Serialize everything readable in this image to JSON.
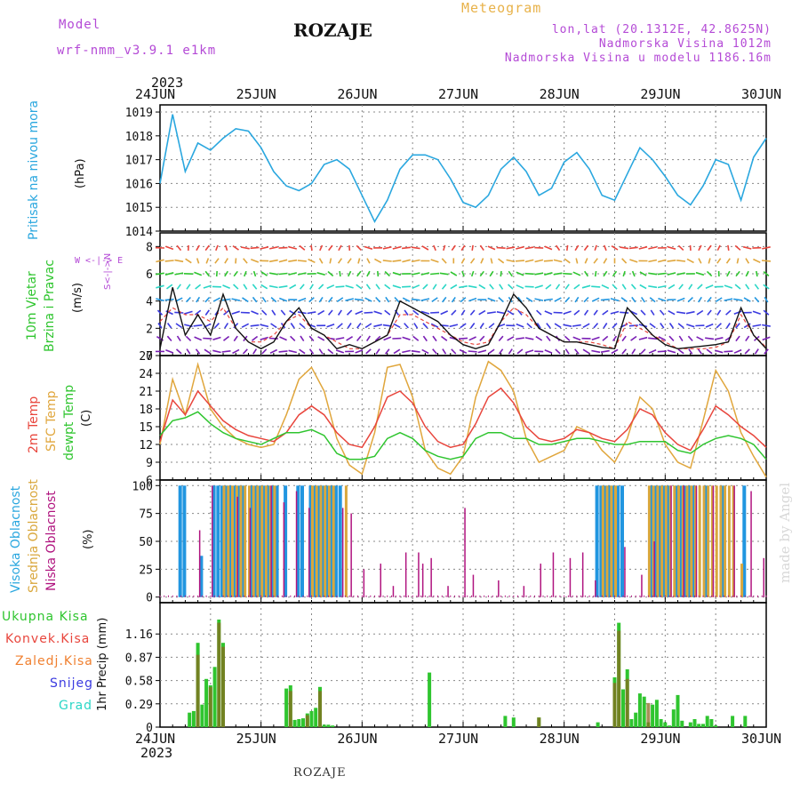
{
  "header": {
    "model_label": "Model",
    "model_name": "wrf-nmm_v3.9.1 e1km",
    "station": "ROZAJE",
    "meteogram": "Meteogram",
    "lonlat": "lon,lat (20.1312E, 42.8625N)",
    "elevation": "Nadmorska Visina 1012m",
    "model_elevation": "Nadmorska Visina u modelu 1186.16m"
  },
  "footer": {
    "station": "ROZAJE",
    "credit": "made by Angel"
  },
  "time_axis": {
    "year": "2023",
    "dates": [
      "24JUN",
      "25JUN",
      "26JUN",
      "27JUN",
      "28JUN",
      "29JUN",
      "30JUN"
    ]
  },
  "panel_labels": {
    "pressure": [
      "Pritisak na nivou mora"
    ],
    "pressure_unit": "(hPa)",
    "wind": [
      "10m Vjetar",
      "Brzina i Pravac"
    ],
    "wind_unit": "(m/s)",
    "wind_compass": "W <-|-> E",
    "wind_compass_ns": "S<-|->N",
    "temp": [
      "2m Temp",
      "SFC Temp",
      "dewpt Temp"
    ],
    "temp_unit": "(C)",
    "cloud": [
      "Visoka Oblacnost",
      "Srednja Oblacnost",
      "Niska Oblacnost"
    ],
    "cloud_unit": "(%)",
    "precip_unit": "1hr Precip (mm)",
    "precip_legend": [
      "Ukupna Kisa",
      "Konvek.Kisa",
      "Zaledj.Kisa",
      "Snijeg",
      "Grad"
    ]
  },
  "colors": {
    "pressure": "#2aa7df",
    "temp2m": "#e8453c",
    "sfc": "#e0a63c",
    "dew": "#2fc52f",
    "high_cloud": "#2196e0",
    "mid_cloud": "#d9a73c",
    "low_cloud": "#b0147f",
    "total_rain": "#2fc52f",
    "conv_rain": "#e8453c",
    "frz_rain": "#f08030",
    "snow": "#3a3ae0",
    "hail": "#2ad6c6",
    "model_text": "#b44ad6",
    "meteogram_text": "#e8b24a"
  },
  "chart_data": [
    {
      "type": "line",
      "title": "",
      "ylabel": "Pritisak na nivou mora (hPa)",
      "ylim": [
        1014,
        1019.3
      ],
      "yticks": [
        "1014",
        "1015",
        "1016",
        "1017",
        "1018",
        "1019"
      ],
      "x_hours": [
        0,
        3,
        6,
        9,
        12,
        15,
        18,
        21,
        24,
        27,
        30,
        33,
        36,
        39,
        42,
        45,
        48,
        51,
        54,
        57,
        60,
        63,
        66,
        69,
        72,
        75,
        78,
        81,
        84,
        87,
        90,
        93,
        96,
        99,
        102,
        105,
        108,
        111,
        114,
        117,
        120,
        123,
        126,
        129,
        132,
        135,
        138,
        141,
        144
      ],
      "series": [
        {
          "values": [
            1016.0,
            1018.9,
            1016.5,
            1017.7,
            1017.4,
            1017.9,
            1018.3,
            1018.2,
            1017.5,
            1016.5,
            1015.9,
            1015.7,
            1016.0,
            1016.8,
            1017.0,
            1016.6,
            1015.5,
            1014.4,
            1015.3,
            1016.6,
            1017.2,
            1017.2,
            1017.0,
            1016.2,
            1015.2,
            1015.0,
            1015.5,
            1016.6,
            1017.1,
            1016.5,
            1015.5,
            1015.8,
            1016.9,
            1017.3,
            1016.6,
            1015.5,
            1015.3,
            1016.4,
            1017.5,
            1017.0,
            1016.3,
            1015.5,
            1015.1,
            1015.9,
            1017.0,
            1016.8,
            1015.3,
            1017.1,
            1017.9
          ]
        }
      ],
      "grid": true
    },
    {
      "type": "line",
      "title": "",
      "ylabel": "10m Vjetar Brzina i Pravac (m/s)",
      "ylim": [
        0,
        9
      ],
      "yticks": [
        "0",
        "2",
        "4",
        "6",
        "8"
      ],
      "note": "wind barbs drawn at 9 levels; line = 10m wind speed, dashed = gust estimate",
      "x_hours": [
        0,
        3,
        6,
        9,
        12,
        15,
        18,
        21,
        24,
        27,
        30,
        33,
        36,
        39,
        42,
        45,
        48,
        51,
        54,
        57,
        60,
        63,
        66,
        69,
        72,
        75,
        78,
        81,
        84,
        87,
        90,
        93,
        96,
        99,
        102,
        105,
        108,
        111,
        114,
        117,
        120,
        123,
        126,
        129,
        132,
        135,
        138,
        141,
        144
      ],
      "series": [
        {
          "values": [
            0.5,
            5.0,
            1.5,
            3.0,
            1.5,
            4.5,
            2.0,
            1.0,
            0.5,
            1.0,
            2.5,
            3.5,
            2.0,
            1.5,
            0.5,
            0.8,
            0.5,
            1.0,
            1.5,
            4.0,
            3.5,
            3.0,
            2.5,
            1.5,
            0.8,
            0.5,
            0.8,
            2.5,
            4.5,
            3.5,
            2.0,
            1.5,
            1.0,
            1.0,
            0.8,
            0.6,
            0.5,
            3.5,
            2.5,
            1.5,
            0.8,
            0.5,
            0.6,
            0.7,
            0.8,
            1.0,
            3.5,
            1.5,
            0.5
          ]
        },
        {
          "values": [
            2.5,
            3.5,
            3.0,
            3.0,
            2.5,
            3.5,
            2.0,
            1.0,
            1.0,
            1.5,
            2.5,
            3.0,
            2.0,
            1.5,
            1.0,
            0.5,
            0.5,
            1.0,
            1.5,
            3.0,
            3.0,
            2.5,
            2.0,
            1.5,
            1.0,
            0.8,
            1.0,
            2.5,
            3.5,
            3.0,
            2.0,
            1.5,
            1.0,
            1.0,
            1.0,
            0.8,
            0.5,
            2.5,
            2.0,
            1.5,
            1.0,
            0.5,
            0.5,
            0.5,
            0.6,
            1.0,
            3.0,
            1.5,
            0.6
          ]
        }
      ],
      "grid": true
    },
    {
      "type": "line",
      "title": "",
      "ylabel": "2m Temp / SFC Temp / dewpt Temp (C)",
      "ylim": [
        6,
        27
      ],
      "yticks": [
        "6",
        "9",
        "12",
        "15",
        "18",
        "21",
        "24",
        "27"
      ],
      "x_hours": [
        0,
        3,
        6,
        9,
        12,
        15,
        18,
        21,
        24,
        27,
        30,
        33,
        36,
        39,
        42,
        45,
        48,
        51,
        54,
        57,
        60,
        63,
        66,
        69,
        72,
        75,
        78,
        81,
        84,
        87,
        90,
        93,
        96,
        99,
        102,
        105,
        108,
        111,
        114,
        117,
        120,
        123,
        126,
        129,
        132,
        135,
        138,
        141,
        144
      ],
      "series": [
        {
          "name": "2m Temp",
          "values": [
            12.5,
            19.5,
            17,
            21,
            18.5,
            16,
            14.5,
            13.5,
            13,
            12.5,
            14,
            17,
            18.5,
            17,
            14,
            12,
            11.5,
            15,
            20,
            21,
            19,
            15,
            12.5,
            11.5,
            12,
            15.5,
            20,
            21.5,
            19,
            15,
            13,
            12.5,
            13,
            14.5,
            14,
            13,
            12.5,
            14.5,
            18,
            17,
            14,
            12,
            11,
            14.5,
            18.5,
            17,
            15,
            13.5,
            11.5
          ]
        },
        {
          "name": "SFC Temp",
          "values": [
            12.0,
            23,
            17,
            25.5,
            18,
            15,
            13,
            12,
            11.5,
            12,
            17,
            23,
            25,
            21,
            13,
            8.5,
            7,
            14,
            25,
            25.5,
            20,
            11,
            8,
            7,
            10,
            20,
            26,
            24.5,
            21,
            13,
            9,
            10,
            11,
            15,
            14,
            11,
            9,
            13,
            20,
            18,
            12,
            9,
            8,
            16,
            24.5,
            21,
            14,
            10,
            6.5
          ]
        },
        {
          "name": "dewpt Temp",
          "values": [
            13.5,
            16,
            16.5,
            17.5,
            15.5,
            14,
            13,
            12.5,
            12,
            13,
            14,
            14,
            14.5,
            13.5,
            10.5,
            9.5,
            9.5,
            10,
            13,
            14,
            13,
            11,
            10,
            9.5,
            10,
            13,
            14,
            14,
            13,
            13,
            12,
            12,
            12.5,
            13,
            13,
            12.5,
            12,
            12,
            12.5,
            12.5,
            12.5,
            11,
            10.5,
            12,
            13,
            13.5,
            13,
            12,
            9.5
          ]
        }
      ],
      "grid": true
    },
    {
      "type": "bar",
      "title": "",
      "ylabel": "Visoka / Srednja / Niska Oblacnost (%)",
      "ylim": [
        -5,
        105
      ],
      "yticks": [
        "0",
        "25",
        "50",
        "75",
        "100"
      ],
      "series": [
        {
          "name": "Visoka Oblacnost",
          "x_hours": [
            5,
            6,
            10,
            13,
            14,
            15,
            16,
            17,
            18,
            19,
            20,
            22,
            23,
            24,
            25,
            26,
            27,
            28,
            30,
            33,
            34,
            36,
            37,
            38,
            39,
            40,
            41,
            42,
            43,
            104,
            105,
            106,
            107,
            108,
            109,
            110,
            117,
            118,
            119,
            120,
            121,
            123,
            124,
            125,
            126,
            127,
            130,
            134,
            139
          ],
          "values": [
            100,
            100,
            37,
            100,
            100,
            100,
            100,
            100,
            100,
            100,
            100,
            100,
            100,
            100,
            100,
            100,
            100,
            100,
            100,
            100,
            100,
            100,
            100,
            100,
            100,
            100,
            100,
            100,
            100,
            100,
            100,
            100,
            100,
            100,
            100,
            100,
            100,
            100,
            100,
            100,
            100,
            100,
            100,
            100,
            100,
            100,
            100,
            100,
            100
          ]
        },
        {
          "name": "Srednja Oblacnost",
          "x_hours": [
            15,
            16,
            17,
            18,
            19,
            20,
            21,
            22,
            23,
            24,
            25,
            26,
            27,
            36,
            37,
            38,
            39,
            40,
            41,
            44,
            105,
            106,
            107,
            108,
            116,
            117,
            118,
            119,
            120,
            121,
            122,
            123,
            124,
            125,
            126,
            127,
            128,
            129,
            130,
            131,
            132,
            133,
            134,
            135,
            136,
            138
          ],
          "values": [
            100,
            100,
            100,
            100,
            100,
            100,
            100,
            100,
            100,
            100,
            100,
            100,
            100,
            100,
            100,
            100,
            100,
            100,
            100,
            100,
            100,
            100,
            100,
            100,
            100,
            100,
            100,
            100,
            100,
            100,
            100,
            100,
            100,
            100,
            100,
            100,
            100,
            100,
            100,
            100,
            100,
            100,
            100,
            100,
            100,
            30
          ]
        },
        {
          "name": "Niska Oblacnost",
          "x_hours": [
            9,
            12,
            18,
            21,
            26,
            29,
            32,
            35,
            43,
            45,
            48,
            52,
            55,
            58,
            61,
            62,
            64,
            68,
            72,
            74,
            80,
            86,
            90,
            93,
            97,
            100,
            103,
            110,
            114,
            117,
            121,
            124,
            127,
            131,
            136,
            140,
            143
          ],
          "values": [
            60,
            100,
            90,
            80,
            100,
            85,
            95,
            80,
            80,
            75,
            25,
            30,
            10,
            40,
            40,
            30,
            35,
            10,
            80,
            20,
            15,
            10,
            30,
            40,
            35,
            40,
            15,
            45,
            20,
            50,
            100,
            100,
            100,
            100,
            100,
            95,
            35
          ]
        }
      ],
      "grid": true
    },
    {
      "type": "bar",
      "title": "",
      "ylabel": "1hr Precip (mm)",
      "ylim": [
        0,
        1.55
      ],
      "yticks": [
        "0",
        "0.29",
        "0.58",
        "0.87",
        "1.16"
      ],
      "series": [
        {
          "name": "Ukupna Kisa",
          "x_hours": [
            7,
            8,
            9,
            10,
            11,
            12,
            13,
            14,
            15,
            30,
            31,
            32,
            33,
            34,
            35,
            36,
            37,
            38,
            39,
            40,
            41,
            64,
            82,
            84,
            90,
            104,
            108,
            109,
            110,
            111,
            112,
            113,
            114,
            115,
            116,
            117,
            118,
            119,
            120,
            121,
            122,
            123,
            124,
            126,
            127,
            128,
            129,
            130,
            131,
            132,
            136,
            139
          ],
          "values": [
            0.18,
            0.2,
            1.05,
            0.28,
            0.6,
            0.52,
            0.75,
            1.34,
            1.05,
            0.48,
            0.52,
            0.09,
            0.1,
            0.11,
            0.17,
            0.2,
            0.24,
            0.5,
            0.03,
            0.03,
            0.02,
            0.68,
            0.14,
            0.12,
            0.12,
            0.06,
            0.62,
            1.3,
            0.47,
            0.72,
            0.1,
            0.18,
            0.42,
            0.38,
            0.06,
            0.28,
            0.34,
            0.1,
            0.06,
            0.02,
            0.22,
            0.4,
            0.08,
            0.06,
            0.1,
            0.04,
            0.04,
            0.14,
            0.1,
            0.02,
            0.14,
            0.14
          ]
        },
        {
          "name": "Konvek.Kisa",
          "x_hours": [
            9,
            12,
            14,
            15,
            31,
            35,
            38,
            90,
            108,
            109,
            111,
            116
          ],
          "values": [
            0.9,
            0.5,
            1.3,
            1.0,
            0.45,
            0.15,
            0.45,
            0.12,
            0.55,
            1.2,
            0.6,
            0.3
          ]
        }
      ],
      "grid": true
    }
  ]
}
